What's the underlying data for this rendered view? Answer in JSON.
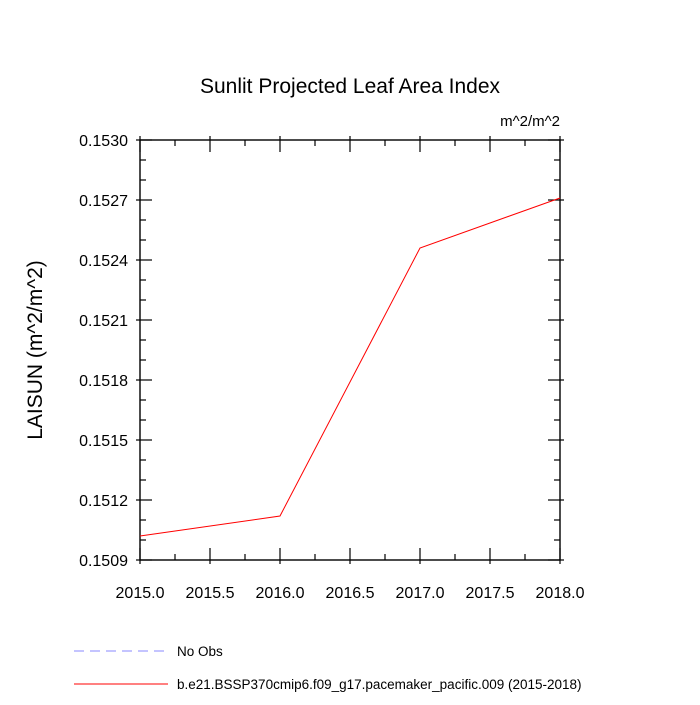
{
  "chart_data": {
    "type": "line",
    "title": "Sunlit Projected Leaf Area Index",
    "units_label": "m^2/m^2",
    "ylabel": "LAISUN  (m^2/m^2)",
    "xlabel": "",
    "xlim": [
      2015.0,
      2018.0
    ],
    "ylim": [
      0.1509,
      0.153
    ],
    "x_ticks": [
      2015.0,
      2015.5,
      2016.0,
      2016.5,
      2017.0,
      2017.5,
      2018.0
    ],
    "x_tick_labels": [
      "2015.0",
      "2015.5",
      "2016.0",
      "2016.5",
      "2017.0",
      "2017.5",
      "2018.0"
    ],
    "x_minor_step": 0.25,
    "y_ticks": [
      0.1509,
      0.1512,
      0.1515,
      0.1518,
      0.1521,
      0.1524,
      0.1527,
      0.153
    ],
    "y_tick_labels": [
      "0.1509",
      "0.1512",
      "0.1515",
      "0.1518",
      "0.1521",
      "0.1524",
      "0.1527",
      "0.1530"
    ],
    "y_minor_step": 0.0001,
    "grid": false,
    "legend_position": "bottom-left, below plot",
    "series": [
      {
        "name": "No Obs",
        "color": "#8a8aff",
        "dash": "dashed",
        "x": [],
        "y": []
      },
      {
        "name": "b.e21.BSSP370cmip6.f09_g17.pacemaker_pacific.009 (2015-2018)",
        "color": "#ff0000",
        "dash": "solid",
        "x": [
          2015,
          2016,
          2017,
          2018
        ],
        "y": [
          0.15102,
          0.15112,
          0.15246,
          0.15271
        ]
      }
    ]
  }
}
